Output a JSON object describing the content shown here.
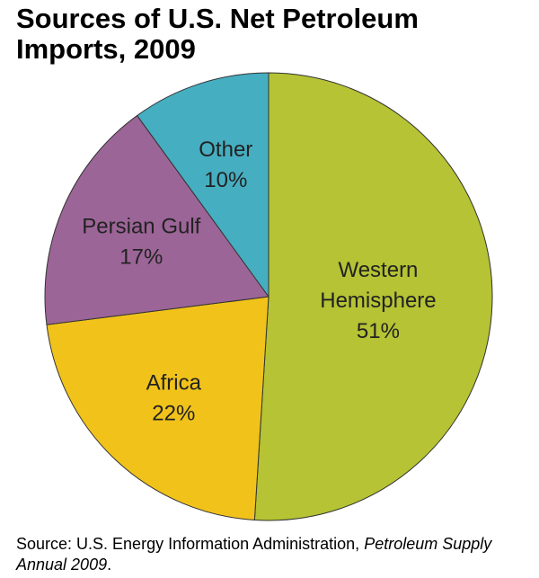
{
  "chart_data": {
    "type": "pie",
    "title": "Sources of U.S. Net Petroleum Imports, 2009",
    "categories": [
      "Western Hemisphere",
      "Africa",
      "Persian Gulf",
      "Other"
    ],
    "values": [
      51,
      22,
      17,
      10
    ],
    "value_labels": [
      "51%",
      "22%",
      "17%",
      "10%"
    ],
    "colors": [
      "#b5c334",
      "#f1c31a",
      "#9c6597",
      "#46aec1"
    ],
    "source": {
      "text": "Source: U.S. Energy Information Administration, ",
      "publication": "Petroleum Supply Annual 2009",
      "end": "."
    }
  }
}
